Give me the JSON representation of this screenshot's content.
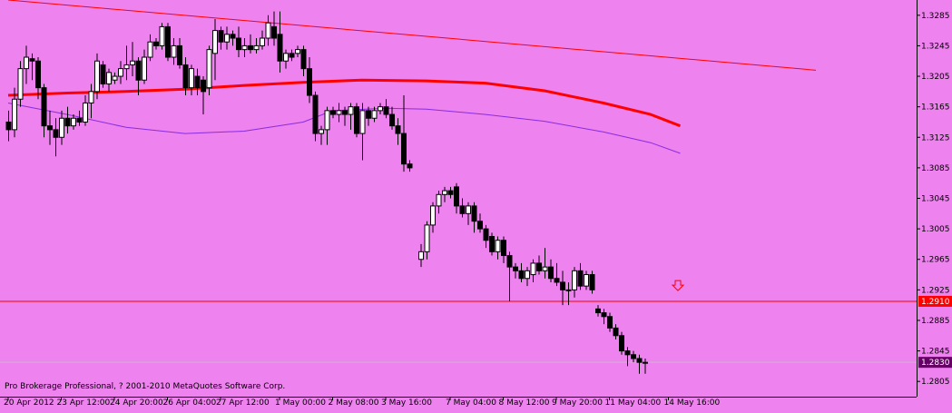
{
  "copyright": "Pro Brokerage Professional, ? 2001-2010 MetaQuotes Software Corp.",
  "colors": {
    "background": "#ee82ee",
    "axis": "#000000",
    "text": "#000000",
    "bull_body": "#ffffff",
    "bear_body": "#000000",
    "trendline": "#ff0000",
    "ma_fast": "#ff0000",
    "ma_slow": "#8a2be2",
    "level_line": "#ff0000",
    "level_tag": "#ff0000",
    "current_line": "#c0c0c0",
    "current_tag": "#660066",
    "arrow": "#ff0000"
  },
  "chart_data": {
    "type": "candlestick",
    "ylim": [
      1.2785,
      1.3305
    ],
    "y_ticks": [
      "1.3285",
      "1.3245",
      "1.3205",
      "1.3165",
      "1.3125",
      "1.3085",
      "1.3045",
      "1.3005",
      "1.2965",
      "1.2925",
      "1.2885",
      "1.2845",
      "1.2805"
    ],
    "x_labels": [
      {
        "label": "20 Apr 2012",
        "bar": 0
      },
      {
        "label": "23 Apr 12:00",
        "bar": 9
      },
      {
        "label": "24 Apr 20:00",
        "bar": 18
      },
      {
        "label": "26 Apr 04:00",
        "bar": 27
      },
      {
        "label": "27 Apr 12:00",
        "bar": 36
      },
      {
        "label": "1 May 00:00",
        "bar": 46
      },
      {
        "label": "2 May 08:00",
        "bar": 55
      },
      {
        "label": "3 May 16:00",
        "bar": 64
      },
      {
        "label": "7 May 04:00",
        "bar": 74
      },
      {
        "label": "8 May 12:00",
        "bar": 83
      },
      {
        "label": "9 May 20:00",
        "bar": 92
      },
      {
        "label": "11 May 04:00",
        "bar": 101
      },
      {
        "label": "14 May 16:00",
        "bar": 111
      }
    ],
    "candles": [
      [
        1.3145,
        1.316,
        1.312,
        1.3135
      ],
      [
        1.3135,
        1.319,
        1.3125,
        1.3175
      ],
      [
        1.3175,
        1.3225,
        1.3165,
        1.3215
      ],
      [
        1.3215,
        1.3245,
        1.3195,
        1.323
      ],
      [
        1.3228,
        1.3235,
        1.32,
        1.3225
      ],
      [
        1.3225,
        1.323,
        1.3175,
        1.319
      ],
      [
        1.319,
        1.3195,
        1.3125,
        1.314
      ],
      [
        1.314,
        1.316,
        1.3115,
        1.3135
      ],
      [
        1.3135,
        1.315,
        1.31,
        1.3125
      ],
      [
        1.3125,
        1.316,
        1.3115,
        1.315
      ],
      [
        1.315,
        1.3165,
        1.313,
        1.314
      ],
      [
        1.314,
        1.3155,
        1.3135,
        1.315
      ],
      [
        1.315,
        1.316,
        1.314,
        1.3145
      ],
      [
        1.3145,
        1.318,
        1.314,
        1.317
      ],
      [
        1.317,
        1.3195,
        1.315,
        1.3185
      ],
      [
        1.3185,
        1.3235,
        1.3175,
        1.3225
      ],
      [
        1.322,
        1.3225,
        1.319,
        1.3195
      ],
      [
        1.3195,
        1.3215,
        1.3185,
        1.321
      ],
      [
        1.32,
        1.321,
        1.3195,
        1.3205
      ],
      [
        1.3205,
        1.3225,
        1.3195,
        1.3215
      ],
      [
        1.3215,
        1.3245,
        1.32,
        1.322
      ],
      [
        1.322,
        1.325,
        1.3205,
        1.3225
      ],
      [
        1.3225,
        1.323,
        1.318,
        1.32
      ],
      [
        1.32,
        1.324,
        1.3195,
        1.323
      ],
      [
        1.323,
        1.326,
        1.3225,
        1.325
      ],
      [
        1.325,
        1.3255,
        1.324,
        1.3245
      ],
      [
        1.3245,
        1.3275,
        1.324,
        1.327
      ],
      [
        1.327,
        1.3275,
        1.3225,
        1.323
      ],
      [
        1.323,
        1.3255,
        1.322,
        1.3245
      ],
      [
        1.3245,
        1.3255,
        1.3215,
        1.322
      ],
      [
        1.322,
        1.323,
        1.318,
        1.319
      ],
      [
        1.319,
        1.322,
        1.318,
        1.3215
      ],
      [
        1.3205,
        1.3215,
        1.318,
        1.319
      ],
      [
        1.32,
        1.3205,
        1.3155,
        1.3185
      ],
      [
        1.319,
        1.3245,
        1.318,
        1.324
      ],
      [
        1.3235,
        1.328,
        1.32,
        1.3265
      ],
      [
        1.3265,
        1.327,
        1.324,
        1.325
      ],
      [
        1.325,
        1.327,
        1.324,
        1.326
      ],
      [
        1.326,
        1.3265,
        1.3245,
        1.3255
      ],
      [
        1.3255,
        1.327,
        1.323,
        1.324
      ],
      [
        1.324,
        1.3255,
        1.323,
        1.3245
      ],
      [
        1.3245,
        1.326,
        1.3235,
        1.324
      ],
      [
        1.324,
        1.3255,
        1.3235,
        1.3245
      ],
      [
        1.3245,
        1.3265,
        1.324,
        1.3255
      ],
      [
        1.3255,
        1.3285,
        1.3245,
        1.3275
      ],
      [
        1.327,
        1.329,
        1.3245,
        1.3255
      ],
      [
        1.326,
        1.329,
        1.321,
        1.3225
      ],
      [
        1.3225,
        1.324,
        1.3215,
        1.3235
      ],
      [
        1.3235,
        1.324,
        1.3225,
        1.323
      ],
      [
        1.3235,
        1.3245,
        1.323,
        1.324
      ],
      [
        1.324,
        1.3245,
        1.3205,
        1.3215
      ],
      [
        1.3215,
        1.323,
        1.317,
        1.318
      ],
      [
        1.318,
        1.3185,
        1.312,
        1.313
      ],
      [
        1.313,
        1.314,
        1.3115,
        1.3135
      ],
      [
        1.3135,
        1.3165,
        1.3115,
        1.316
      ],
      [
        1.316,
        1.3165,
        1.315,
        1.3155
      ],
      [
        1.3155,
        1.317,
        1.3145,
        1.316
      ],
      [
        1.316,
        1.3165,
        1.314,
        1.3155
      ],
      [
        1.3155,
        1.317,
        1.3135,
        1.3165
      ],
      [
        1.3165,
        1.317,
        1.3125,
        1.313
      ],
      [
        1.313,
        1.317,
        1.3095,
        1.316
      ],
      [
        1.316,
        1.3165,
        1.314,
        1.315
      ],
      [
        1.315,
        1.3165,
        1.3145,
        1.316
      ],
      [
        1.316,
        1.317,
        1.3155,
        1.3165
      ],
      [
        1.3165,
        1.3175,
        1.315,
        1.3155
      ],
      [
        1.3155,
        1.3165,
        1.3135,
        1.314
      ],
      [
        1.314,
        1.315,
        1.3115,
        1.313
      ],
      [
        1.313,
        1.318,
        1.308,
        1.309
      ],
      [
        1.309,
        1.3095,
        1.308,
        1.3085
      ],
      [
        1.2965,
        1.2985,
        1.2955,
        1.2975
      ],
      [
        1.2975,
        1.3015,
        1.2965,
        1.301
      ],
      [
        1.301,
        1.304,
        1.3,
        1.3035
      ],
      [
        1.3035,
        1.3055,
        1.3025,
        1.305
      ],
      [
        1.305,
        1.306,
        1.304,
        1.3055
      ],
      [
        1.3055,
        1.306,
        1.3045,
        1.305
      ],
      [
        1.306,
        1.3065,
        1.3025,
        1.3035
      ],
      [
        1.3035,
        1.3045,
        1.302,
        1.3025
      ],
      [
        1.3025,
        1.304,
        1.301,
        1.3035
      ],
      [
        1.3035,
        1.304,
        1.3,
        1.3015
      ],
      [
        1.3015,
        1.3025,
        1.3,
        1.3005
      ],
      [
        1.3005,
        1.301,
        1.298,
        1.299
      ],
      [
        1.2995,
        1.3,
        1.297,
        1.2975
      ],
      [
        1.2975,
        1.2995,
        1.2965,
        1.299
      ],
      [
        1.299,
        1.2995,
        1.296,
        1.297
      ],
      [
        1.297,
        1.2975,
        1.291,
        1.2955
      ],
      [
        1.2955,
        1.296,
        1.294,
        1.295
      ],
      [
        1.295,
        1.296,
        1.2935,
        1.294
      ],
      [
        1.294,
        1.2955,
        1.293,
        1.295
      ],
      [
        1.2945,
        1.2965,
        1.2935,
        1.296
      ],
      [
        1.296,
        1.297,
        1.2945,
        1.295
      ],
      [
        1.295,
        1.298,
        1.294,
        1.2955
      ],
      [
        1.2955,
        1.2965,
        1.2935,
        1.294
      ],
      [
        1.294,
        1.296,
        1.293,
        1.2935
      ],
      [
        1.2935,
        1.295,
        1.2905,
        1.2925
      ],
      [
        1.2925,
        1.2935,
        1.2905,
        1.2925
      ],
      [
        1.2925,
        1.2955,
        1.2915,
        1.295
      ],
      [
        1.295,
        1.296,
        1.2925,
        1.293
      ],
      [
        1.293,
        1.295,
        1.2925,
        1.2945
      ],
      [
        1.2945,
        1.295,
        1.292,
        1.2925
      ],
      [
        1.29,
        1.2905,
        1.289,
        1.2895
      ],
      [
        1.2895,
        1.29,
        1.288,
        1.289
      ],
      [
        1.289,
        1.2895,
        1.287,
        1.2875
      ],
      [
        1.2875,
        1.288,
        1.286,
        1.2865
      ],
      [
        1.2865,
        1.287,
        1.284,
        1.2845
      ],
      [
        1.2845,
        1.285,
        1.2825,
        1.284
      ],
      [
        1.284,
        1.2845,
        1.283,
        1.2835
      ],
      [
        1.2835,
        1.284,
        1.2815,
        1.283
      ],
      [
        1.283,
        1.2835,
        1.2815,
        1.283
      ]
    ],
    "gap_after_bar": 68,
    "trendline": {
      "from": [
        0,
        1.3305
      ],
      "to": [
        136,
        1.3213
      ]
    },
    "ma_fast": [
      [
        0,
        1.318
      ],
      [
        10,
        1.3183
      ],
      [
        20,
        1.3185
      ],
      [
        30,
        1.3188
      ],
      [
        40,
        1.3193
      ],
      [
        50,
        1.3197
      ],
      [
        60,
        1.32
      ],
      [
        70,
        1.3199
      ],
      [
        80,
        1.3196
      ],
      [
        90,
        1.3186
      ],
      [
        100,
        1.317
      ],
      [
        108,
        1.3155
      ],
      [
        113,
        1.314
      ]
    ],
    "ma_slow": [
      [
        0,
        1.317
      ],
      [
        10,
        1.3155
      ],
      [
        20,
        1.3138
      ],
      [
        30,
        1.313
      ],
      [
        40,
        1.3133
      ],
      [
        50,
        1.3145
      ],
      [
        55,
        1.316
      ],
      [
        64,
        1.3163
      ],
      [
        70,
        1.3162
      ],
      [
        80,
        1.3155
      ],
      [
        90,
        1.3146
      ],
      [
        100,
        1.3132
      ],
      [
        108,
        1.3118
      ],
      [
        113,
        1.3104
      ]
    ],
    "level": {
      "value": 1.291,
      "label": "1.2910"
    },
    "current_price": {
      "value": 1.283,
      "label": "1.2830"
    },
    "sell_arrow": {
      "bar": 112,
      "price": 1.293
    }
  }
}
